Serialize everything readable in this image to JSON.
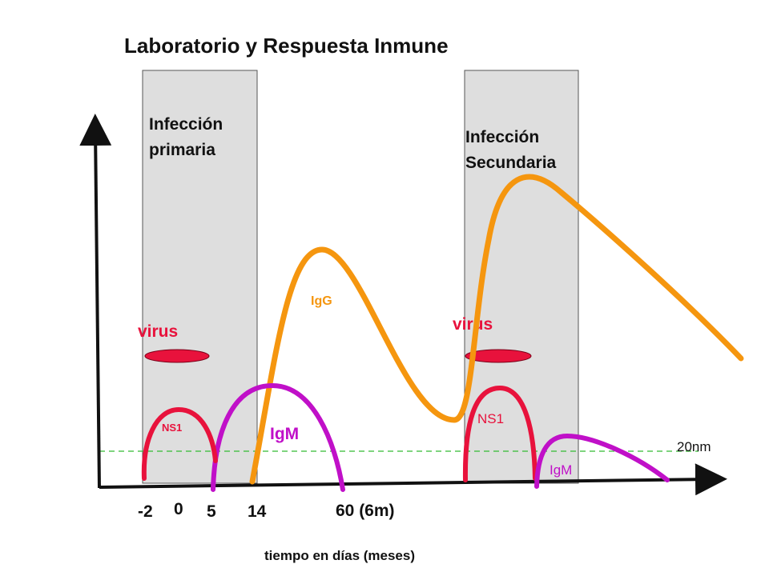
{
  "title": "Laboratorio y Respuesta Inmune",
  "panels": {
    "primary": {
      "line1": "Infección",
      "line2": "primaria"
    },
    "secondary": {
      "line1": "Infección",
      "line2": "Secundaria"
    }
  },
  "labels": {
    "virus_primary": "virus",
    "virus_secondary": "virus",
    "ns1_primary": "NS1",
    "ns1_secondary": "NS1",
    "igm_primary": "IgM",
    "igm_secondary": "IgM",
    "igg": "IgG",
    "threshold": "20nm"
  },
  "x_ticks": [
    "-2",
    "0",
    "5",
    "14",
    "60 (6m)"
  ],
  "x_axis_label": "tiempo en días (meses)",
  "colors": {
    "virus": "#e8123c",
    "ns1": "#e8123c",
    "igm": "#c010c8",
    "igg": "#f5960f",
    "threshold": "#33bb33",
    "panel": "#dedede",
    "axis": "#111111"
  }
}
